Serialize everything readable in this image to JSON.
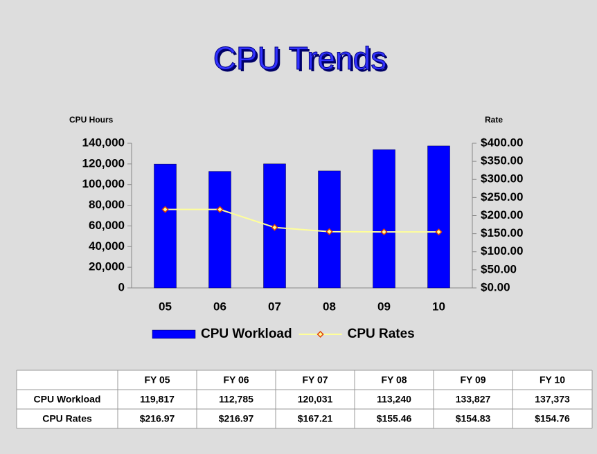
{
  "chart_data": {
    "type": "bar",
    "title": "CPU Trends",
    "y_label": "CPU Hours",
    "y2_label": "Rate",
    "categories": [
      "05",
      "06",
      "07",
      "08",
      "09",
      "10"
    ],
    "series": [
      {
        "name": "CPU Workload",
        "type": "bar",
        "color": "#0000ff",
        "values": [
          119817,
          112785,
          120031,
          113240,
          133827,
          137373
        ]
      },
      {
        "name": "CPU Rates",
        "type": "line",
        "axis": "y2",
        "color": "#ffff99",
        "marker_color": "#e04000",
        "values": [
          216.97,
          216.97,
          167.21,
          155.46,
          154.83,
          154.76
        ]
      }
    ],
    "ylim": [
      0,
      140000
    ],
    "yticks": [
      0,
      {
        "value": 20000,
        "label": "20,000"
      },
      {
        "value": 40000,
        "label": "40,000"
      },
      {
        "value": 60000,
        "label": "60,000"
      },
      {
        "value": 80000,
        "label": "80,000"
      },
      {
        "value": 100000,
        "label": "100,000"
      },
      {
        "value": 120000,
        "label": "120,000"
      },
      {
        "value": 140000,
        "label": "140,000"
      }
    ],
    "y2lim": [
      0,
      400
    ],
    "y2ticks": [
      {
        "value": 0,
        "label": "$0.00"
      },
      {
        "value": 50,
        "label": "$50.00"
      },
      {
        "value": 100,
        "label": "$100.00"
      },
      {
        "value": 150,
        "label": "$150.00"
      },
      {
        "value": 200,
        "label": "$200.00"
      },
      {
        "value": 250,
        "label": "$250.00"
      },
      {
        "value": 300,
        "label": "$300.00"
      },
      {
        "value": 350,
        "label": "$350.00"
      },
      {
        "value": 400,
        "label": "$400.00"
      }
    ],
    "grid": false,
    "legend": "bottom"
  },
  "table": {
    "header": [
      "FY 05",
      "FY 06",
      "FY 07",
      "FY 08",
      "FY 09",
      "FY 10"
    ],
    "rows": [
      {
        "label": "CPU Workload",
        "cells": [
          "119,817",
          "112,785",
          "120,031",
          "113,240",
          "133,827",
          "137,373"
        ]
      },
      {
        "label": "CPU Rates",
        "cells": [
          "$216.97",
          "$216.97",
          "$167.21",
          "$155.46",
          "$154.83",
          "$154.76"
        ]
      }
    ]
  }
}
